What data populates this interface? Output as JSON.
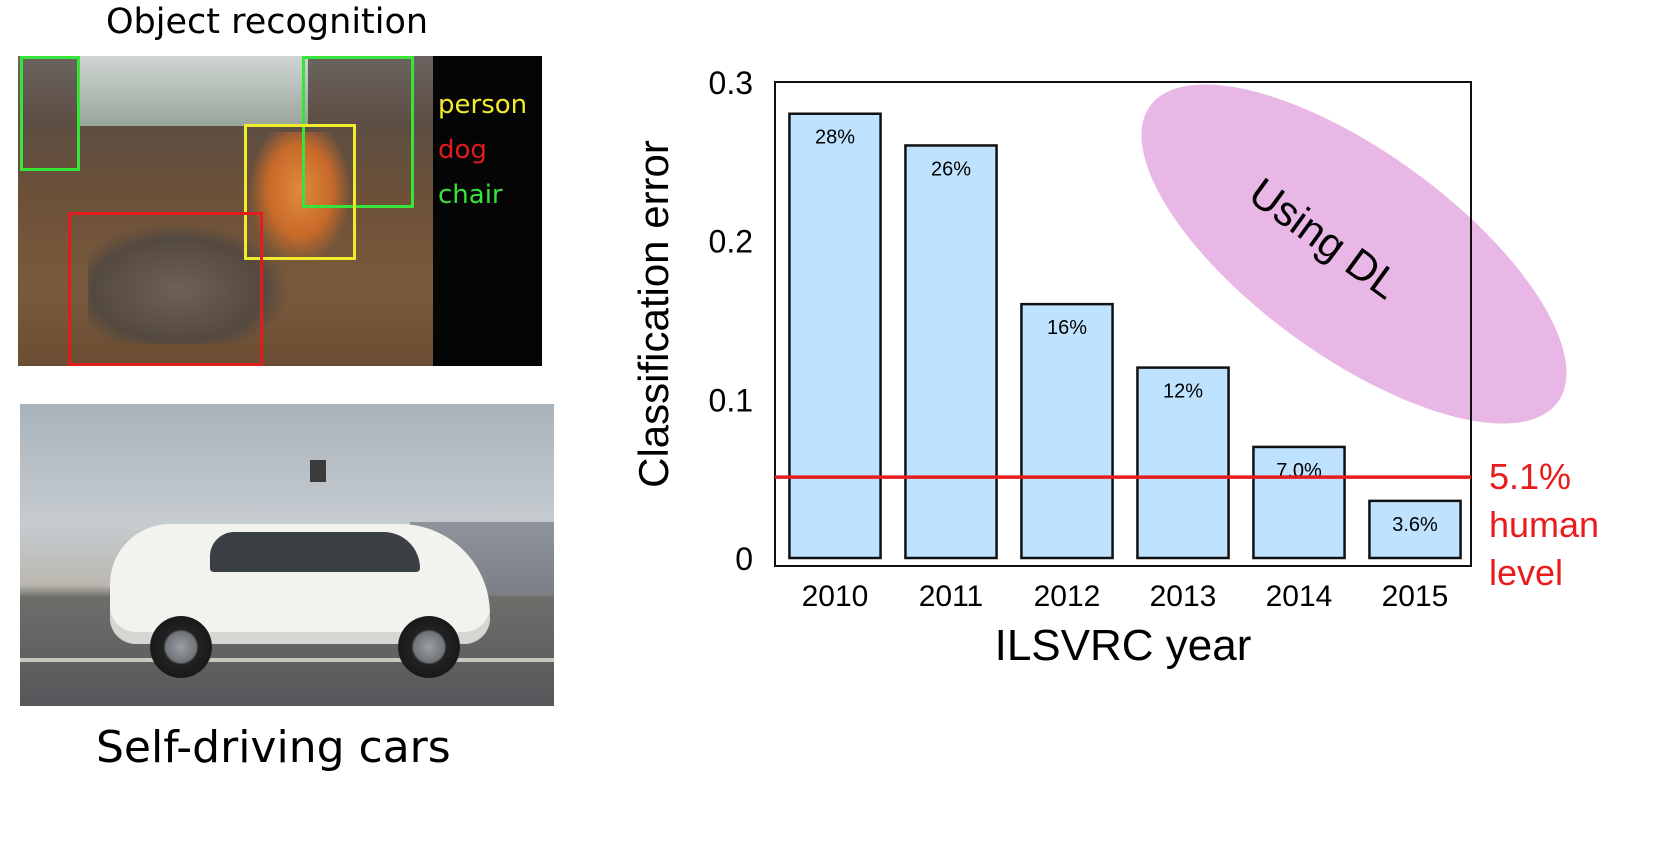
{
  "captions": {
    "top": "Object recognition",
    "bottom": "Self-driving cars"
  },
  "object_labels": {
    "person": "person",
    "dog": "dog",
    "chair": "chair"
  },
  "colors": {
    "bar_fill": "#bfe3ff",
    "bar_stroke": "#111111",
    "human_level_line": "#e81c1c",
    "ellipse": "#e9b7e6",
    "label_person": "#f1ec2b",
    "label_dog": "#e01c1c",
    "label_chair": "#36e43a"
  },
  "chart_data": {
    "type": "bar",
    "categories": [
      "2010",
      "2011",
      "2012",
      "2013",
      "2014",
      "2015"
    ],
    "values": [
      0.28,
      0.26,
      0.16,
      0.12,
      0.07,
      0.036
    ],
    "bar_labels": [
      "28%",
      "26%",
      "16%",
      "12%",
      "7.0%",
      "3.6%"
    ],
    "xlabel": "ILSVRC year",
    "ylabel": "Classification error",
    "ylim": [
      0,
      0.3
    ],
    "yticks": [
      0,
      0.1,
      0.2,
      0.3
    ],
    "ytick_labels": [
      "0",
      "0.1",
      "0.2",
      "0.3"
    ],
    "reference_line": {
      "value": 0.051,
      "label_lines": [
        "5.1%",
        "human",
        "level"
      ]
    },
    "annotation": "Using DL",
    "grid": false
  }
}
